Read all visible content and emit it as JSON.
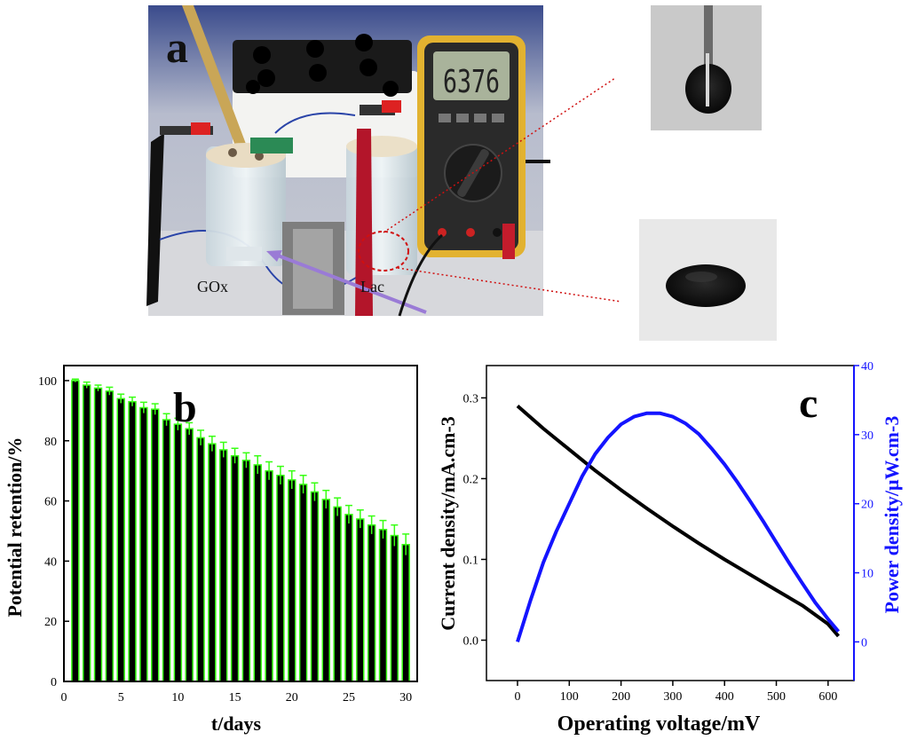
{
  "panel_a": {
    "letter": "a",
    "multimeter_reading": "6376",
    "label_left": "GOx",
    "label_right": "Lac"
  },
  "panel_b": {
    "letter": "b"
  },
  "panel_c": {
    "letter": "c"
  },
  "colors": {
    "bar_fill": "#000000",
    "bar_edge": "#39ff14",
    "current_line": "#000000",
    "power_line": "#1414ff",
    "callout_line": "#d01010"
  },
  "chart_data": [
    {
      "type": "bar",
      "xlabel": "t/days",
      "ylabel": "Potential retention/%",
      "xlim": [
        0,
        31
      ],
      "ylim": [
        0,
        105
      ],
      "xticks": [
        0,
        5,
        10,
        15,
        20,
        25,
        30
      ],
      "yticks": [
        0,
        20,
        40,
        60,
        80,
        100
      ],
      "x": [
        1,
        2,
        3,
        4,
        5,
        6,
        7,
        8,
        9,
        10,
        11,
        12,
        13,
        14,
        15,
        16,
        17,
        18,
        19,
        20,
        21,
        22,
        23,
        24,
        25,
        26,
        27,
        28,
        29,
        30
      ],
      "values": [
        100,
        98.5,
        97.5,
        96.5,
        94,
        93,
        91,
        90.5,
        87,
        85.5,
        84,
        81,
        79,
        77,
        75,
        73.5,
        72,
        70,
        68.5,
        67,
        65.5,
        63,
        60.5,
        58,
        55.5,
        54,
        52,
        50.5,
        48.5,
        45.5
      ],
      "errors": [
        0.5,
        1,
        1,
        1.3,
        1.5,
        1.5,
        1.8,
        1.8,
        2,
        2,
        2,
        2.5,
        2.5,
        2.5,
        2.5,
        2.5,
        3,
        3,
        3,
        3,
        3,
        3,
        3,
        3,
        3,
        3,
        3,
        3,
        3.5,
        3.5
      ],
      "grid": false
    },
    {
      "type": "line",
      "xlabel": "Operating voltage/mV",
      "ylabel": "Current density/mA.cm-3",
      "ylabel_right": "Power density/μW.cm-3",
      "xlim": [
        -60,
        650
      ],
      "ylim": [
        -0.05,
        0.34
      ],
      "ylim_right": [
        -5.6,
        40
      ],
      "xticks": [
        0,
        100,
        200,
        300,
        400,
        500,
        600
      ],
      "yticks": [
        0.0,
        0.1,
        0.2,
        0.3
      ],
      "yticks_right": [
        0,
        10,
        20,
        30,
        40
      ],
      "grid": false,
      "series": [
        {
          "axis": "left",
          "x": [
            0,
            50,
            100,
            150,
            200,
            250,
            300,
            350,
            400,
            450,
            500,
            550,
            600,
            620
          ],
          "values": [
            0.29,
            0.262,
            0.236,
            0.21,
            0.186,
            0.163,
            0.141,
            0.12,
            0.1,
            0.081,
            0.062,
            0.043,
            0.02,
            0.005
          ]
        },
        {
          "axis": "right",
          "x": [
            0,
            25,
            50,
            75,
            100,
            125,
            150,
            175,
            200,
            225,
            250,
            275,
            300,
            325,
            350,
            375,
            400,
            425,
            450,
            475,
            500,
            525,
            550,
            575,
            600,
            620
          ],
          "values": [
            0,
            6,
            11.5,
            16,
            20,
            24,
            27.2,
            29.6,
            31.5,
            32.6,
            33.1,
            33.1,
            32.6,
            31.6,
            30.1,
            28,
            25.7,
            23.1,
            20.3,
            17.4,
            14.4,
            11.4,
            8.5,
            5.7,
            3.3,
            1.5
          ]
        }
      ]
    }
  ]
}
